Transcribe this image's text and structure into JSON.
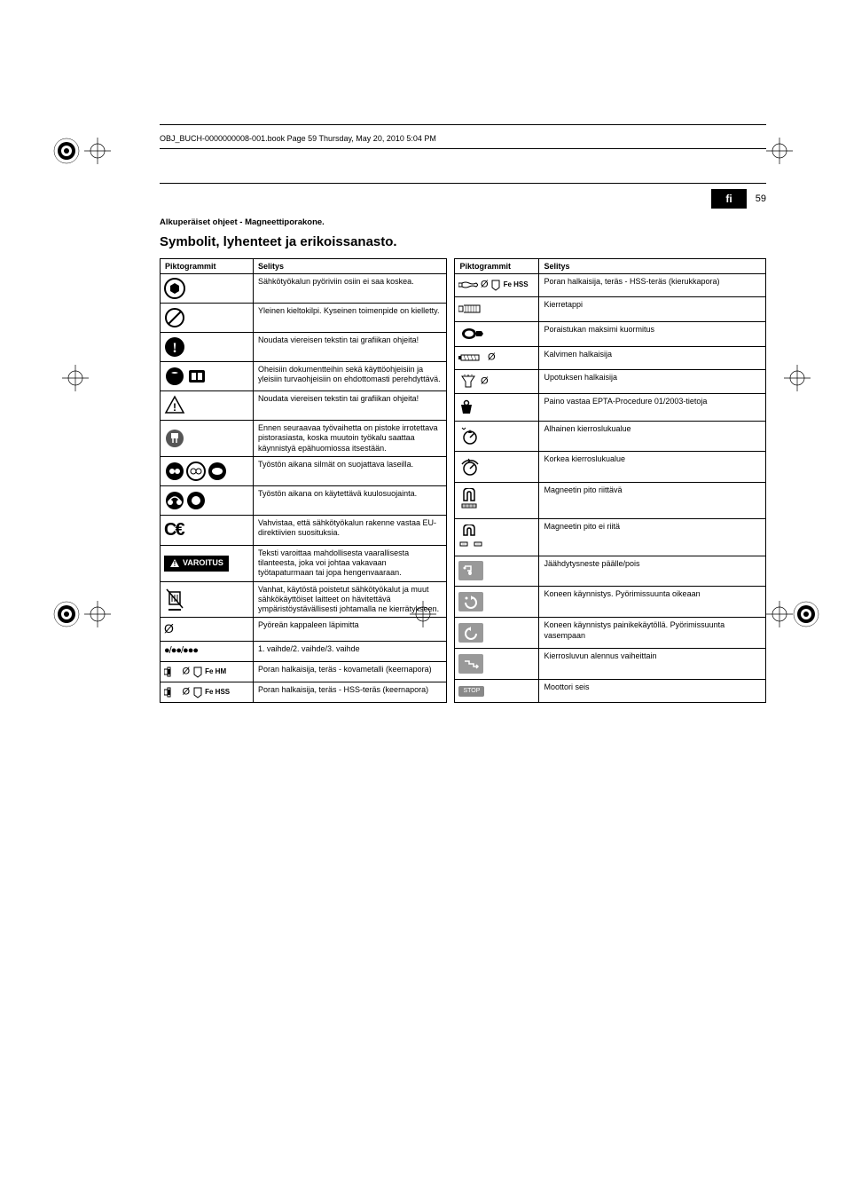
{
  "header": {
    "filename": "OBJ_BUCH-0000000008-001.book  Page 59  Thursday, May 20, 2010  5:04 PM"
  },
  "page": {
    "lang": "fi",
    "number": "59",
    "subtitle": "Alkuperäiset ohjeet - Magneettiporakone.",
    "title": "Symbolit, lyhenteet ja erikoissanasto."
  },
  "table_headers": {
    "col1": "Piktogrammit",
    "col2": "Selitys"
  },
  "left_rows": [
    {
      "icon": "no-touch",
      "text": "Sähkötyökalun pyöriviin osiin ei saa koskea."
    },
    {
      "icon": "prohibit",
      "text": "Yleinen kieltokilpi. Kyseinen toimenpide on kielletty."
    },
    {
      "icon": "info",
      "text": "Noudata viereisen tekstin tai grafiikan ohjeita!"
    },
    {
      "icon": "docs",
      "text": "Oheisiin dokumentteihin sekä käyttöohjeisiin ja yleisiin turvaohjeisiin on ehdottomasti perehdyttävä."
    },
    {
      "icon": "caution",
      "text": "Noudata viereisen tekstin tai grafiikan ohjeita!"
    },
    {
      "icon": "unplug",
      "text": "Ennen seuraavaa työvaihetta on pistoke irrotettava pistorasiasta, koska muutoin työkalu saattaa käynnistyä epähuomiossa itsestään."
    },
    {
      "icon": "goggles",
      "text": "Työstön aikana silmät on suojattava laseilla."
    },
    {
      "icon": "earprotect",
      "text": "Työstön aikana on käytettävä kuulosuojainta."
    },
    {
      "icon": "ce",
      "text": "Vahvistaa, että sähkötyökalun rakenne vastaa EU-direktiivien suosituksia."
    },
    {
      "icon": "warning",
      "text": "Teksti varoittaa mahdollisesta vaarallisesta tilanteesta, joka voi johtaa vakavaan työtapaturmaan tai jopa hengenvaaraan."
    },
    {
      "icon": "weee",
      "text": "Vanhat, käytöstä poistetut sähkötyökalut ja muut sähkökäyttöiset laitteet on hävitettävä ympäristöystävällisesti johtamalla ne kierrätykseen."
    },
    {
      "icon": "diameter",
      "text": "Pyöreän kappaleen läpimitta"
    },
    {
      "icon": "gears",
      "text": "1. vaihde/2. vaihde/3. vaihde"
    },
    {
      "icon": "fehm",
      "label": "Fe HM",
      "text": "Poran halkaisija, teräs - kovametalli (keernapora)"
    },
    {
      "icon": "fehss",
      "label": "Fe HSS",
      "text": "Poran halkaisija, teräs - HSS-teräs (keernapora)"
    }
  ],
  "right_rows": [
    {
      "icon": "twist-hss",
      "label": "Fe HSS",
      "text": "Poran halkaisija, teräs - HSS-teräs (kierukkapora)"
    },
    {
      "icon": "tap",
      "text": "Kierretappi"
    },
    {
      "icon": "chuck-load",
      "text": "Poraistukan maksimi kuormitus"
    },
    {
      "icon": "reamer",
      "text": "Kalvimen halkaisija"
    },
    {
      "icon": "countersink",
      "text": "Upotuksen halkaisija"
    },
    {
      "icon": "weight",
      "text": "Paino vastaa EPTA-Procedure 01/2003-tietoja"
    },
    {
      "icon": "low-speed",
      "text": "Alhainen kierroslukualue"
    },
    {
      "icon": "high-speed",
      "text": "Korkea kierroslukualue"
    },
    {
      "icon": "magnet-ok",
      "text": "Magneetin pito riittävä"
    },
    {
      "icon": "magnet-fail",
      "text": "Magneetin pito ei riitä"
    },
    {
      "icon": "coolant",
      "text": "Jäähdytysneste päälle/pois"
    },
    {
      "icon": "start-cw",
      "text": "Koneen käynnistys. Pyörimissuunta oikeaan"
    },
    {
      "icon": "start-ccw",
      "text": "Koneen käynnistys painikekäytöllä. Pyörimissuunta vasempaan"
    },
    {
      "icon": "step-down",
      "text": "Kierrosluvun alennus vaiheittain"
    },
    {
      "icon": "stop",
      "text": "Moottori seis"
    }
  ],
  "warning_label": "VAROITUS",
  "stop_label": "STOP"
}
